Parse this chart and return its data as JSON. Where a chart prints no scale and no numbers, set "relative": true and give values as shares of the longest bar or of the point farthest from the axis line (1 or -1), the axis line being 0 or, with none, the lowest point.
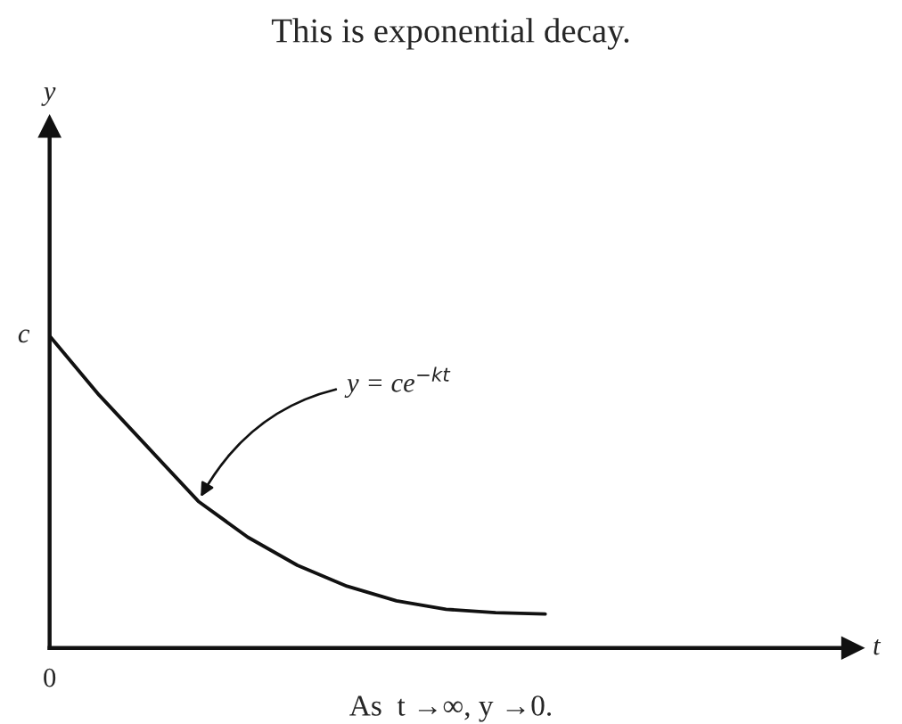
{
  "chart_data": {
    "type": "line",
    "title": "This is exponential decay.",
    "categories": [
      null,
      null,
      null,
      null,
      null,
      null,
      null,
      null,
      null,
      null,
      null
    ],
    "series": [
      {
        "color": "#111111",
        "values": [
          1.0,
          0.81,
          0.64,
          0.47,
          0.355,
          0.265,
          0.198,
          0.151,
          0.124,
          0.113,
          0.109
        ]
      }
    ],
    "relative": true,
    "annotations": [
      "y = ce$^{−kt}$",
      "c",
      "0",
      "As  t →∞, y →0.",
      "t",
      "y"
    ],
    "line_style": "solid",
    "marker": "none"
  }
}
